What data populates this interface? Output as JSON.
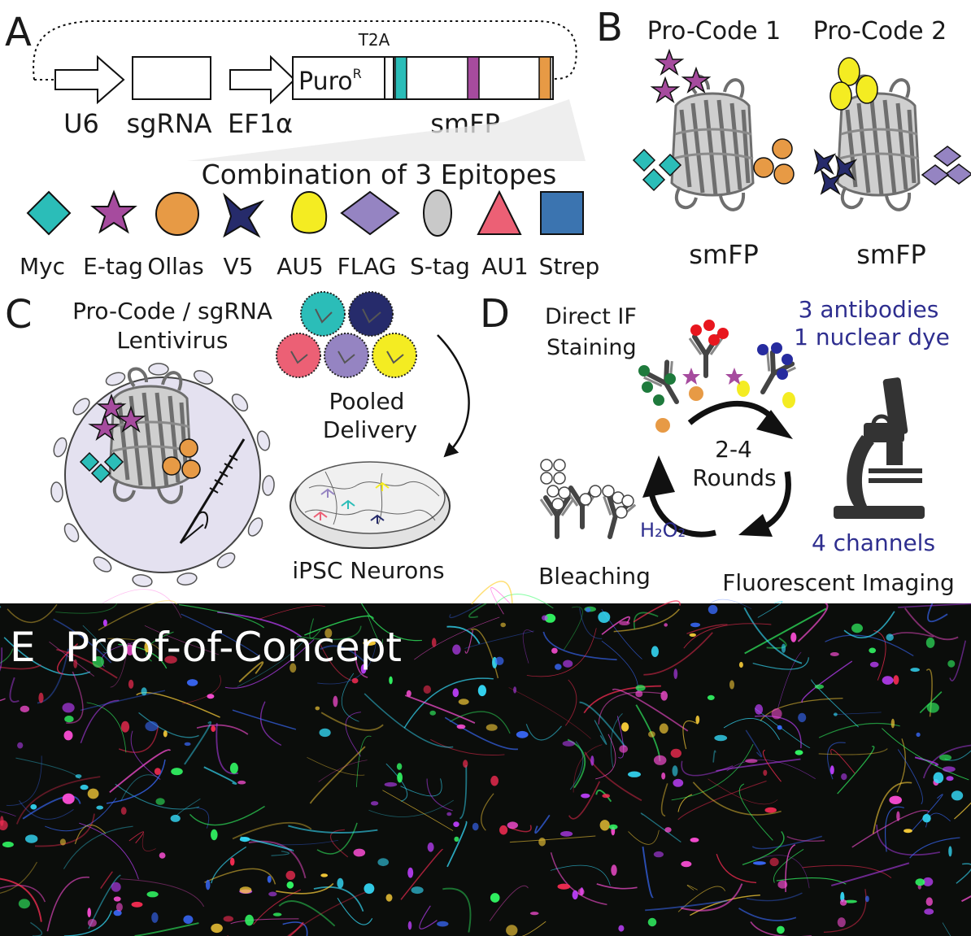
{
  "panel_a": {
    "label": "A",
    "promoter1": "U6",
    "guide": "sgRNA",
    "promoter2": "EF1α",
    "resistance": "Puro",
    "resistance_sup": "R",
    "linker": "T2A",
    "scaffold": "smFP",
    "combination_title": "Combination of 3 Epitopes",
    "epitopes": [
      {
        "name": "Myc",
        "color": "#2BBDB8",
        "shape": "diamond"
      },
      {
        "name": "E-tag",
        "color": "#A64B9E",
        "shape": "star"
      },
      {
        "name": "Ollas",
        "color": "#E79A45",
        "shape": "circle"
      },
      {
        "name": "V5",
        "color": "#262B6B",
        "shape": "four-point-star"
      },
      {
        "name": "AU5",
        "color": "#F4EC22",
        "shape": "egg"
      },
      {
        "name": "FLAG",
        "color": "#9584C2",
        "shape": "flat-diamond"
      },
      {
        "name": "S-tag",
        "color": "#C9C9C9",
        "shape": "oval"
      },
      {
        "name": "AU1",
        "color": "#EC6075",
        "shape": "triangle"
      },
      {
        "name": "Strep",
        "color": "#3B74B0",
        "shape": "square"
      }
    ]
  },
  "panel_b": {
    "label": "B",
    "procode1": "Pro-Code 1",
    "procode2": "Pro-Code 2",
    "smfp1": "smFP",
    "smfp2": "smFP"
  },
  "panel_c": {
    "label": "C",
    "title_line1": "Pro-Code / sgRNA",
    "title_line2": "Lentivirus",
    "pooled_line1": "Pooled",
    "pooled_line2": "Delivery",
    "neurons": "iPSC Neurons"
  },
  "panel_d": {
    "label": "D",
    "staining_line1": "Direct IF",
    "staining_line2": "Staining",
    "antibodies_line1": "3 antibodies",
    "antibodies_line2": "1 nuclear dye",
    "rounds_line1": "2-4",
    "rounds_line2": "Rounds",
    "h2o2": "H₂O₂",
    "channels": "4 channels",
    "bleaching": "Bleaching",
    "imaging": "Fluorescent Imaging",
    "accent_color": "#2E2E8F"
  },
  "panel_e": {
    "label": "E",
    "title": "Proof-of-Concept"
  }
}
